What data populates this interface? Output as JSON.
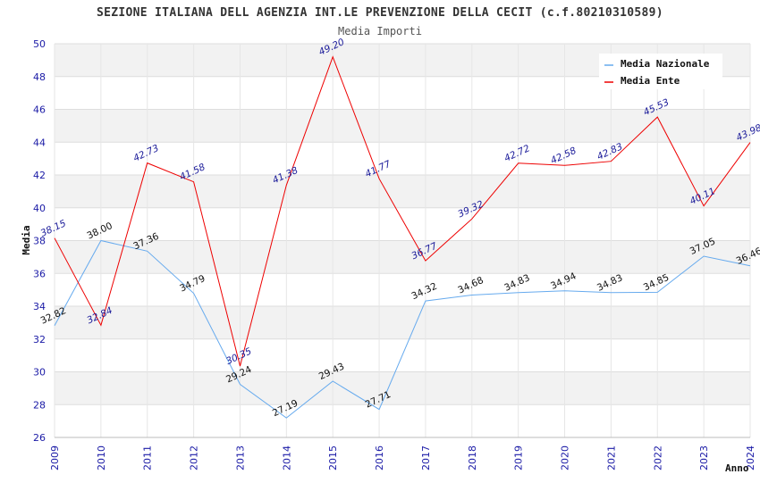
{
  "chart_data": {
    "type": "line",
    "title": "SEZIONE ITALIANA DELL AGENZIA INT.LE PREVENZIONE DELLA CECIT (c.f.80210310589)",
    "subtitle": "Media Importi",
    "xlabel": "Anno",
    "ylabel": "Media",
    "ylim": [
      26,
      50
    ],
    "yticks": [
      26,
      28,
      30,
      32,
      34,
      36,
      38,
      40,
      42,
      44,
      46,
      48,
      50
    ],
    "categories": [
      "2009",
      "2010",
      "2011",
      "2012",
      "2013",
      "2014",
      "2015",
      "2016",
      "2017",
      "2018",
      "2019",
      "2020",
      "2021",
      "2022",
      "2023",
      "2024"
    ],
    "legend_position": "top-right",
    "grid": true,
    "series": [
      {
        "name": "Media Nazionale",
        "color": "#66aaee",
        "values": [
          32.82,
          38.0,
          37.36,
          34.79,
          29.24,
          27.19,
          29.43,
          27.71,
          34.32,
          34.68,
          34.83,
          34.94,
          34.83,
          34.85,
          37.05,
          36.46
        ],
        "labels": [
          "32.82",
          "38.00",
          "37.36",
          "34.79",
          "29.24",
          "27.19",
          "29.43",
          "27.71",
          "34.32",
          "34.68",
          "34.83",
          "34.94",
          "34.83",
          "34.85",
          "37.05",
          "36.46"
        ]
      },
      {
        "name": "Media Ente",
        "color": "#ee0000",
        "values": [
          38.15,
          32.84,
          42.73,
          41.58,
          30.35,
          41.38,
          49.2,
          41.77,
          36.77,
          39.32,
          42.72,
          42.58,
          42.83,
          45.53,
          40.11,
          43.98
        ],
        "labels": [
          "38.15",
          "32.84",
          "42.73",
          "41.58",
          "30.35",
          "41.38",
          "49.20",
          "41.77",
          "36.77",
          "39.32",
          "42.72",
          "42.58",
          "42.83",
          "45.53",
          "40.11",
          "43.98"
        ]
      }
    ]
  }
}
